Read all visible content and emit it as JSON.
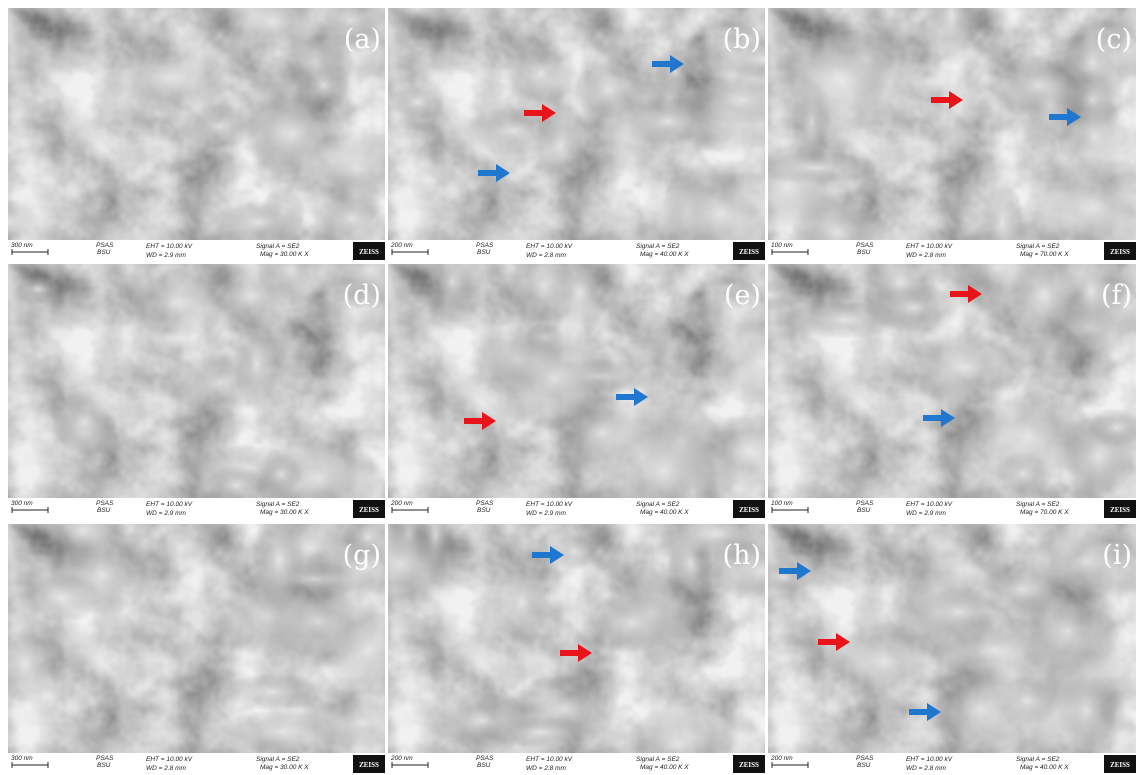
{
  "common": {
    "org1": "PSAS",
    "org2": "BSU",
    "eht": "EHT = 10.00 kV",
    "signal": "Signal A = SE2",
    "brand": "ZEISS"
  },
  "panels": [
    {
      "label": "(a)",
      "scale": "300 nm",
      "wd": "WD = 2.9 mm",
      "mag": "Mag = 30.00 K X"
    },
    {
      "label": "(b)",
      "scale": "200 nm",
      "wd": "WD = 2.8 mm",
      "mag": "Mag = 40.00 K X"
    },
    {
      "label": "(c)",
      "scale": "100 nm",
      "wd": "WD = 2.8 mm",
      "mag": "Mag = 70.00 K X"
    },
    {
      "label": "(d)",
      "scale": "300 nm",
      "wd": "WD = 2.9 mm",
      "mag": "Mag = 30.00 K X"
    },
    {
      "label": "(e)",
      "scale": "200 nm",
      "wd": "WD = 2.9 mm",
      "mag": "Mag = 40.00 K X"
    },
    {
      "label": "(f)",
      "scale": "100 nm",
      "wd": "WD = 2.9 mm",
      "mag": "Mag = 70.00 K X"
    },
    {
      "label": "(g)",
      "scale": "300 nm",
      "wd": "WD = 2.8 mm",
      "mag": "Mag = 30.00 K X"
    },
    {
      "label": "(h)",
      "scale": "200 nm",
      "wd": "WD = 2.8 mm",
      "mag": "Mag = 40.00 K X"
    },
    {
      "label": "(i)",
      "scale": "200 nm",
      "wd": "WD = 2.8 mm",
      "mag": "Mag = 40.00 K X"
    }
  ]
}
